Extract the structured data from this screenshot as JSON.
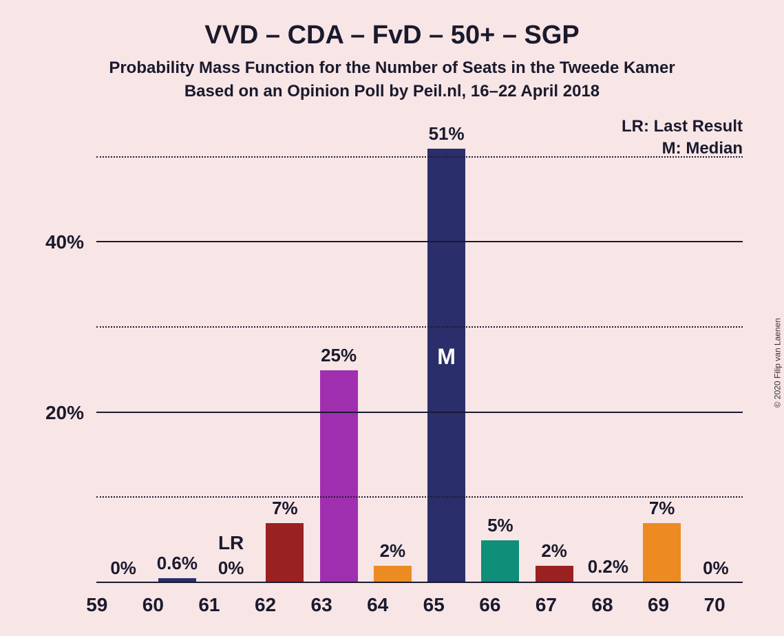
{
  "chart": {
    "type": "bar",
    "title": "VVD – CDA – FvD – 50+ – SGP",
    "title_fontsize": 38,
    "subtitle1": "Probability Mass Function for the Number of Seats in the Tweede Kamer",
    "subtitle2": "Based on an Opinion Poll by Peil.nl, 16–22 April 2018",
    "subtitle_fontsize": 24,
    "background_color": "#f8e5e5",
    "text_color": "#1a1a2e",
    "legend": {
      "lr": "LR: Last Result",
      "m": "M: Median",
      "fontsize": 24
    },
    "copyright": "© 2020 Filip van Laenen",
    "yaxis": {
      "ylim_max": 55,
      "major_ticks": [
        20,
        40
      ],
      "minor_ticks": [
        10,
        30,
        50
      ],
      "tick_label_fontsize": 28,
      "tick_label_suffix": "%"
    },
    "xaxis": {
      "categories": [
        "59",
        "60",
        "61",
        "62",
        "63",
        "64",
        "65",
        "66",
        "67",
        "68",
        "69",
        "70"
      ],
      "tick_label_fontsize": 28
    },
    "bars": [
      {
        "x": "59",
        "value": 0,
        "label": "0%",
        "color": "#f8e5e5",
        "extra_top_label": null,
        "inner_label": null
      },
      {
        "x": "60",
        "value": 0.6,
        "label": "0.6%",
        "color": "#2a2e6a",
        "extra_top_label": null,
        "inner_label": null
      },
      {
        "x": "61",
        "value": 0,
        "label": "0%",
        "color": "#f8e5e5",
        "extra_top_label": "LR",
        "inner_label": null
      },
      {
        "x": "62",
        "value": 7,
        "label": "7%",
        "color": "#9a2121",
        "extra_top_label": null,
        "inner_label": null
      },
      {
        "x": "63",
        "value": 25,
        "label": "25%",
        "color": "#a02fb0",
        "extra_top_label": null,
        "inner_label": null
      },
      {
        "x": "64",
        "value": 2,
        "label": "2%",
        "color": "#ec8b22",
        "extra_top_label": null,
        "inner_label": null
      },
      {
        "x": "65",
        "value": 51,
        "label": "51%",
        "color": "#2a2e6a",
        "extra_top_label": null,
        "inner_label": "M"
      },
      {
        "x": "66",
        "value": 5,
        "label": "5%",
        "color": "#0f8e7a",
        "extra_top_label": null,
        "inner_label": null
      },
      {
        "x": "67",
        "value": 2,
        "label": "2%",
        "color": "#9a2121",
        "extra_top_label": null,
        "inner_label": null
      },
      {
        "x": "68",
        "value": 0.2,
        "label": "0.2%",
        "color": "#f8e5e5",
        "extra_top_label": null,
        "inner_label": null
      },
      {
        "x": "69",
        "value": 7,
        "label": "7%",
        "color": "#ec8b22",
        "extra_top_label": null,
        "inner_label": null
      },
      {
        "x": "70",
        "value": 0,
        "label": "0%",
        "color": "#f8e5e5",
        "extra_top_label": null,
        "inner_label": null
      }
    ],
    "bar_label_fontsize": 26,
    "extra_top_label_fontsize": 28,
    "inner_label_fontsize": 32,
    "bar_width_pct": 70
  }
}
